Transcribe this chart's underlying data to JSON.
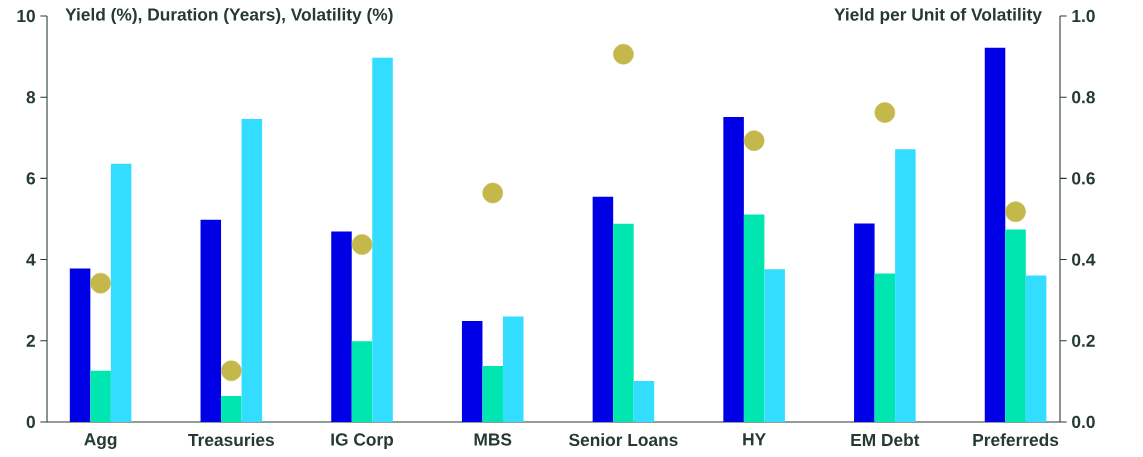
{
  "chart_data": {
    "type": "bar",
    "ylabel": "Yield (%), Duration (Years), Volatility (%)",
    "y2label": "Yield per Unit of Volatility",
    "categories": [
      "Agg",
      "Treasuries",
      "IG Corp",
      "MBS",
      "Senior Loans",
      "HY",
      "EM Debt",
      "Preferreds"
    ],
    "series": [
      {
        "color": "#0000e6",
        "values": [
          3.78,
          4.98,
          4.69,
          2.49,
          5.55,
          7.51,
          4.89,
          9.22
        ]
      },
      {
        "color": "#00e6b0",
        "values": [
          1.26,
          0.64,
          1.99,
          1.38,
          4.88,
          5.11,
          3.66,
          4.74
        ]
      },
      {
        "color": "#33ddff",
        "values": [
          6.36,
          7.46,
          8.97,
          2.6,
          1.01,
          3.76,
          6.72,
          3.61
        ]
      },
      {
        "type": "scatter",
        "axis": "y2",
        "color": "#c4b84a",
        "values": [
          0.342,
          0.126,
          0.437,
          0.564,
          0.906,
          0.693,
          0.762,
          0.518
        ]
      }
    ],
    "ylim": [
      0,
      10
    ],
    "yticks": [
      0,
      2,
      4,
      6,
      8,
      10
    ],
    "y2lim": [
      0,
      1.0
    ],
    "y2ticks": [
      {
        "value": 0,
        "label": "0.0"
      },
      {
        "value": 0.2,
        "label": "0.2"
      },
      {
        "value": 0.4,
        "label": "0.4"
      },
      {
        "value": 0.6,
        "label": "0.6"
      },
      {
        "value": 0.8,
        "label": "0.8"
      },
      {
        "value": 1.0,
        "label": "1.0"
      }
    ]
  }
}
